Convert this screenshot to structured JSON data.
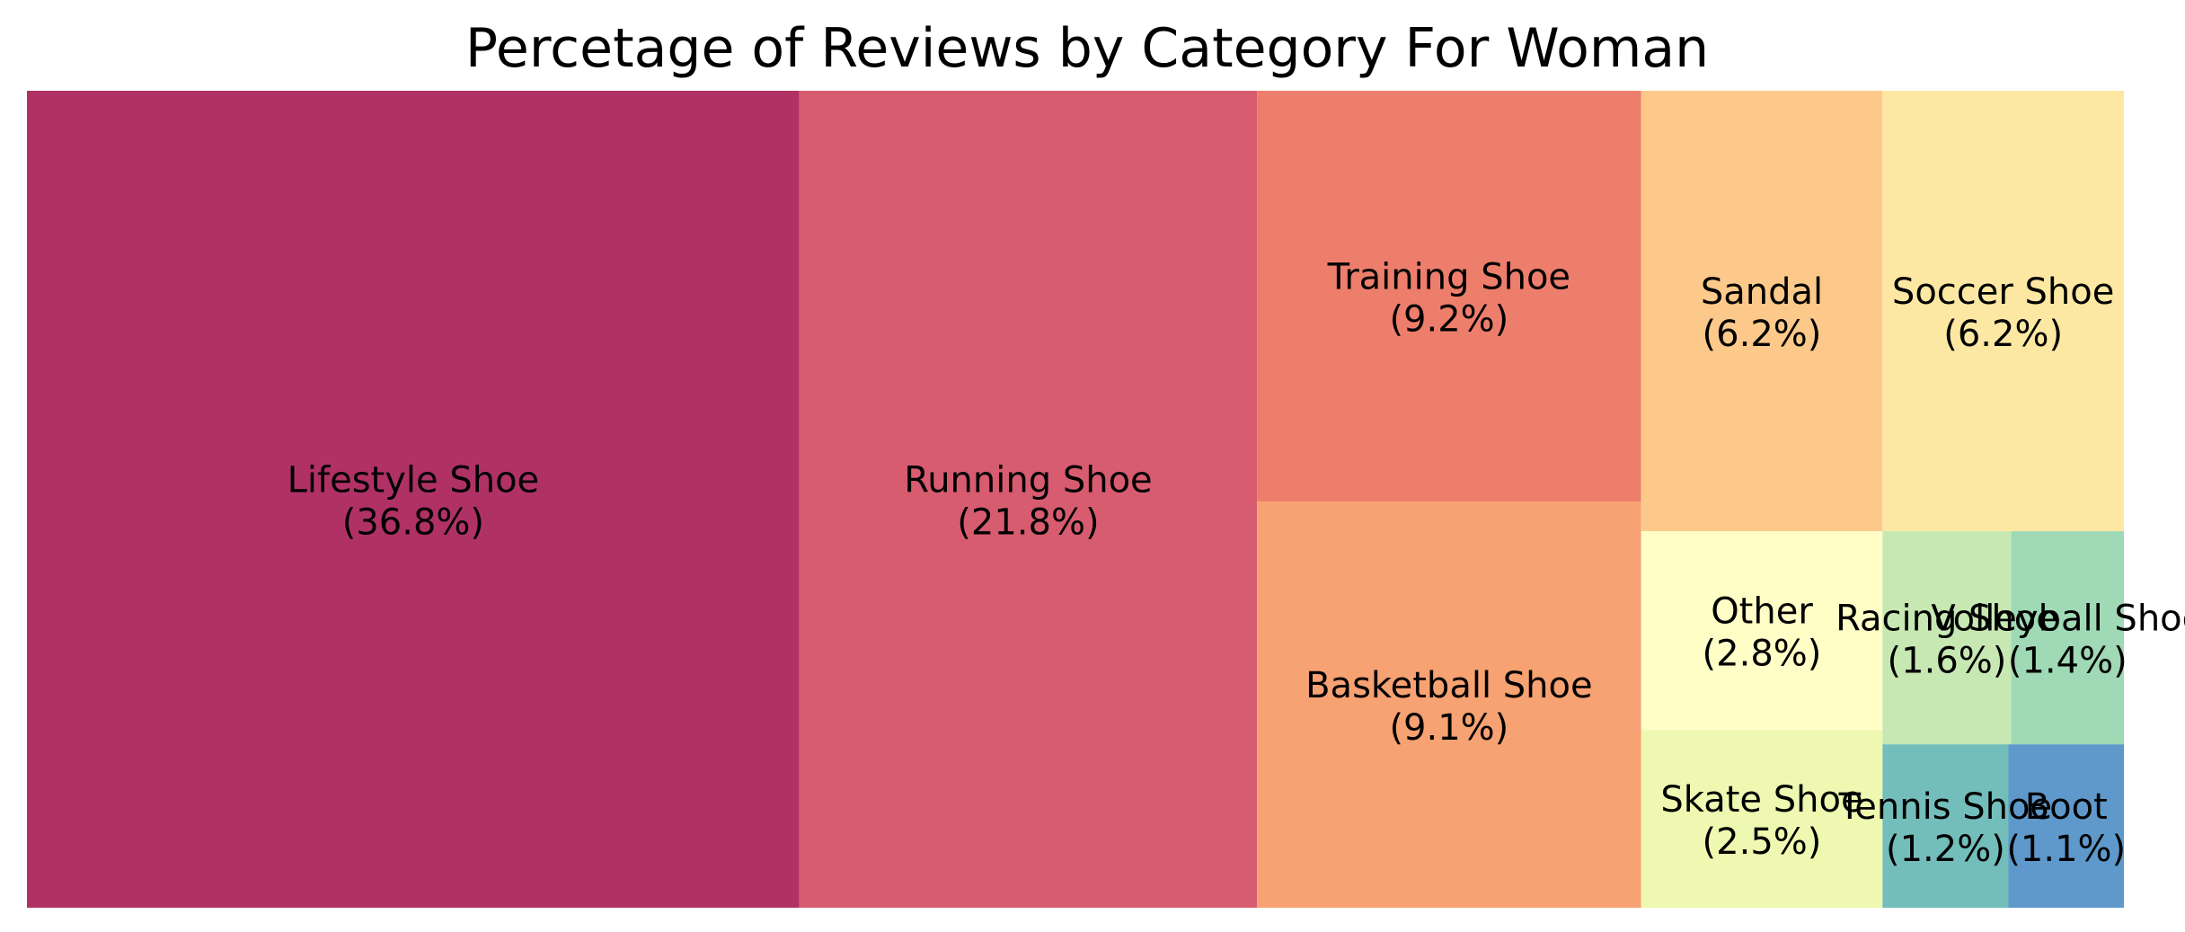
{
  "chart_data": {
    "type": "treemap",
    "title": "Percetage of Reviews by Category For Woman",
    "items": [
      {
        "name": "Lifestyle Shoe",
        "value": 36.8,
        "label": "(36.8%)",
        "color": "#b03265"
      },
      {
        "name": "Running Shoe",
        "value": 21.8,
        "label": "(21.8%)",
        "color": "#d75c70"
      },
      {
        "name": "Training Shoe",
        "value": 9.2,
        "label": "(9.2%)",
        "color": "#ed7e6c"
      },
      {
        "name": "Basketball Shoe",
        "value": 9.1,
        "label": "(9.1%)",
        "color": "#f7a272"
      },
      {
        "name": "Sandal",
        "value": 6.2,
        "label": "(6.2%)",
        "color": "#fcc98a"
      },
      {
        "name": "Soccer Shoe",
        "value": 6.2,
        "label": "(6.2%)",
        "color": "#fde8a3"
      },
      {
        "name": "Other",
        "value": 2.8,
        "label": "(2.8%)",
        "color": "#fefec6"
      },
      {
        "name": "Skate Shoe",
        "value": 2.5,
        "label": "(2.5%)",
        "color": "#eef8b0"
      },
      {
        "name": "Racing Shoe",
        "value": 1.6,
        "label": "(1.6%)",
        "color": "#c7e8b3"
      },
      {
        "name": "Volleyball Shoe",
        "value": 1.4,
        "label": "(1.4%)",
        "color": "#9fd9b5"
      },
      {
        "name": "Tennis Shoe",
        "value": 1.2,
        "label": "(1.2%)",
        "color": "#73bebb"
      },
      {
        "name": "Boot",
        "value": 1.1,
        "label": "(1.1%)",
        "color": "#5f99cb"
      }
    ]
  }
}
